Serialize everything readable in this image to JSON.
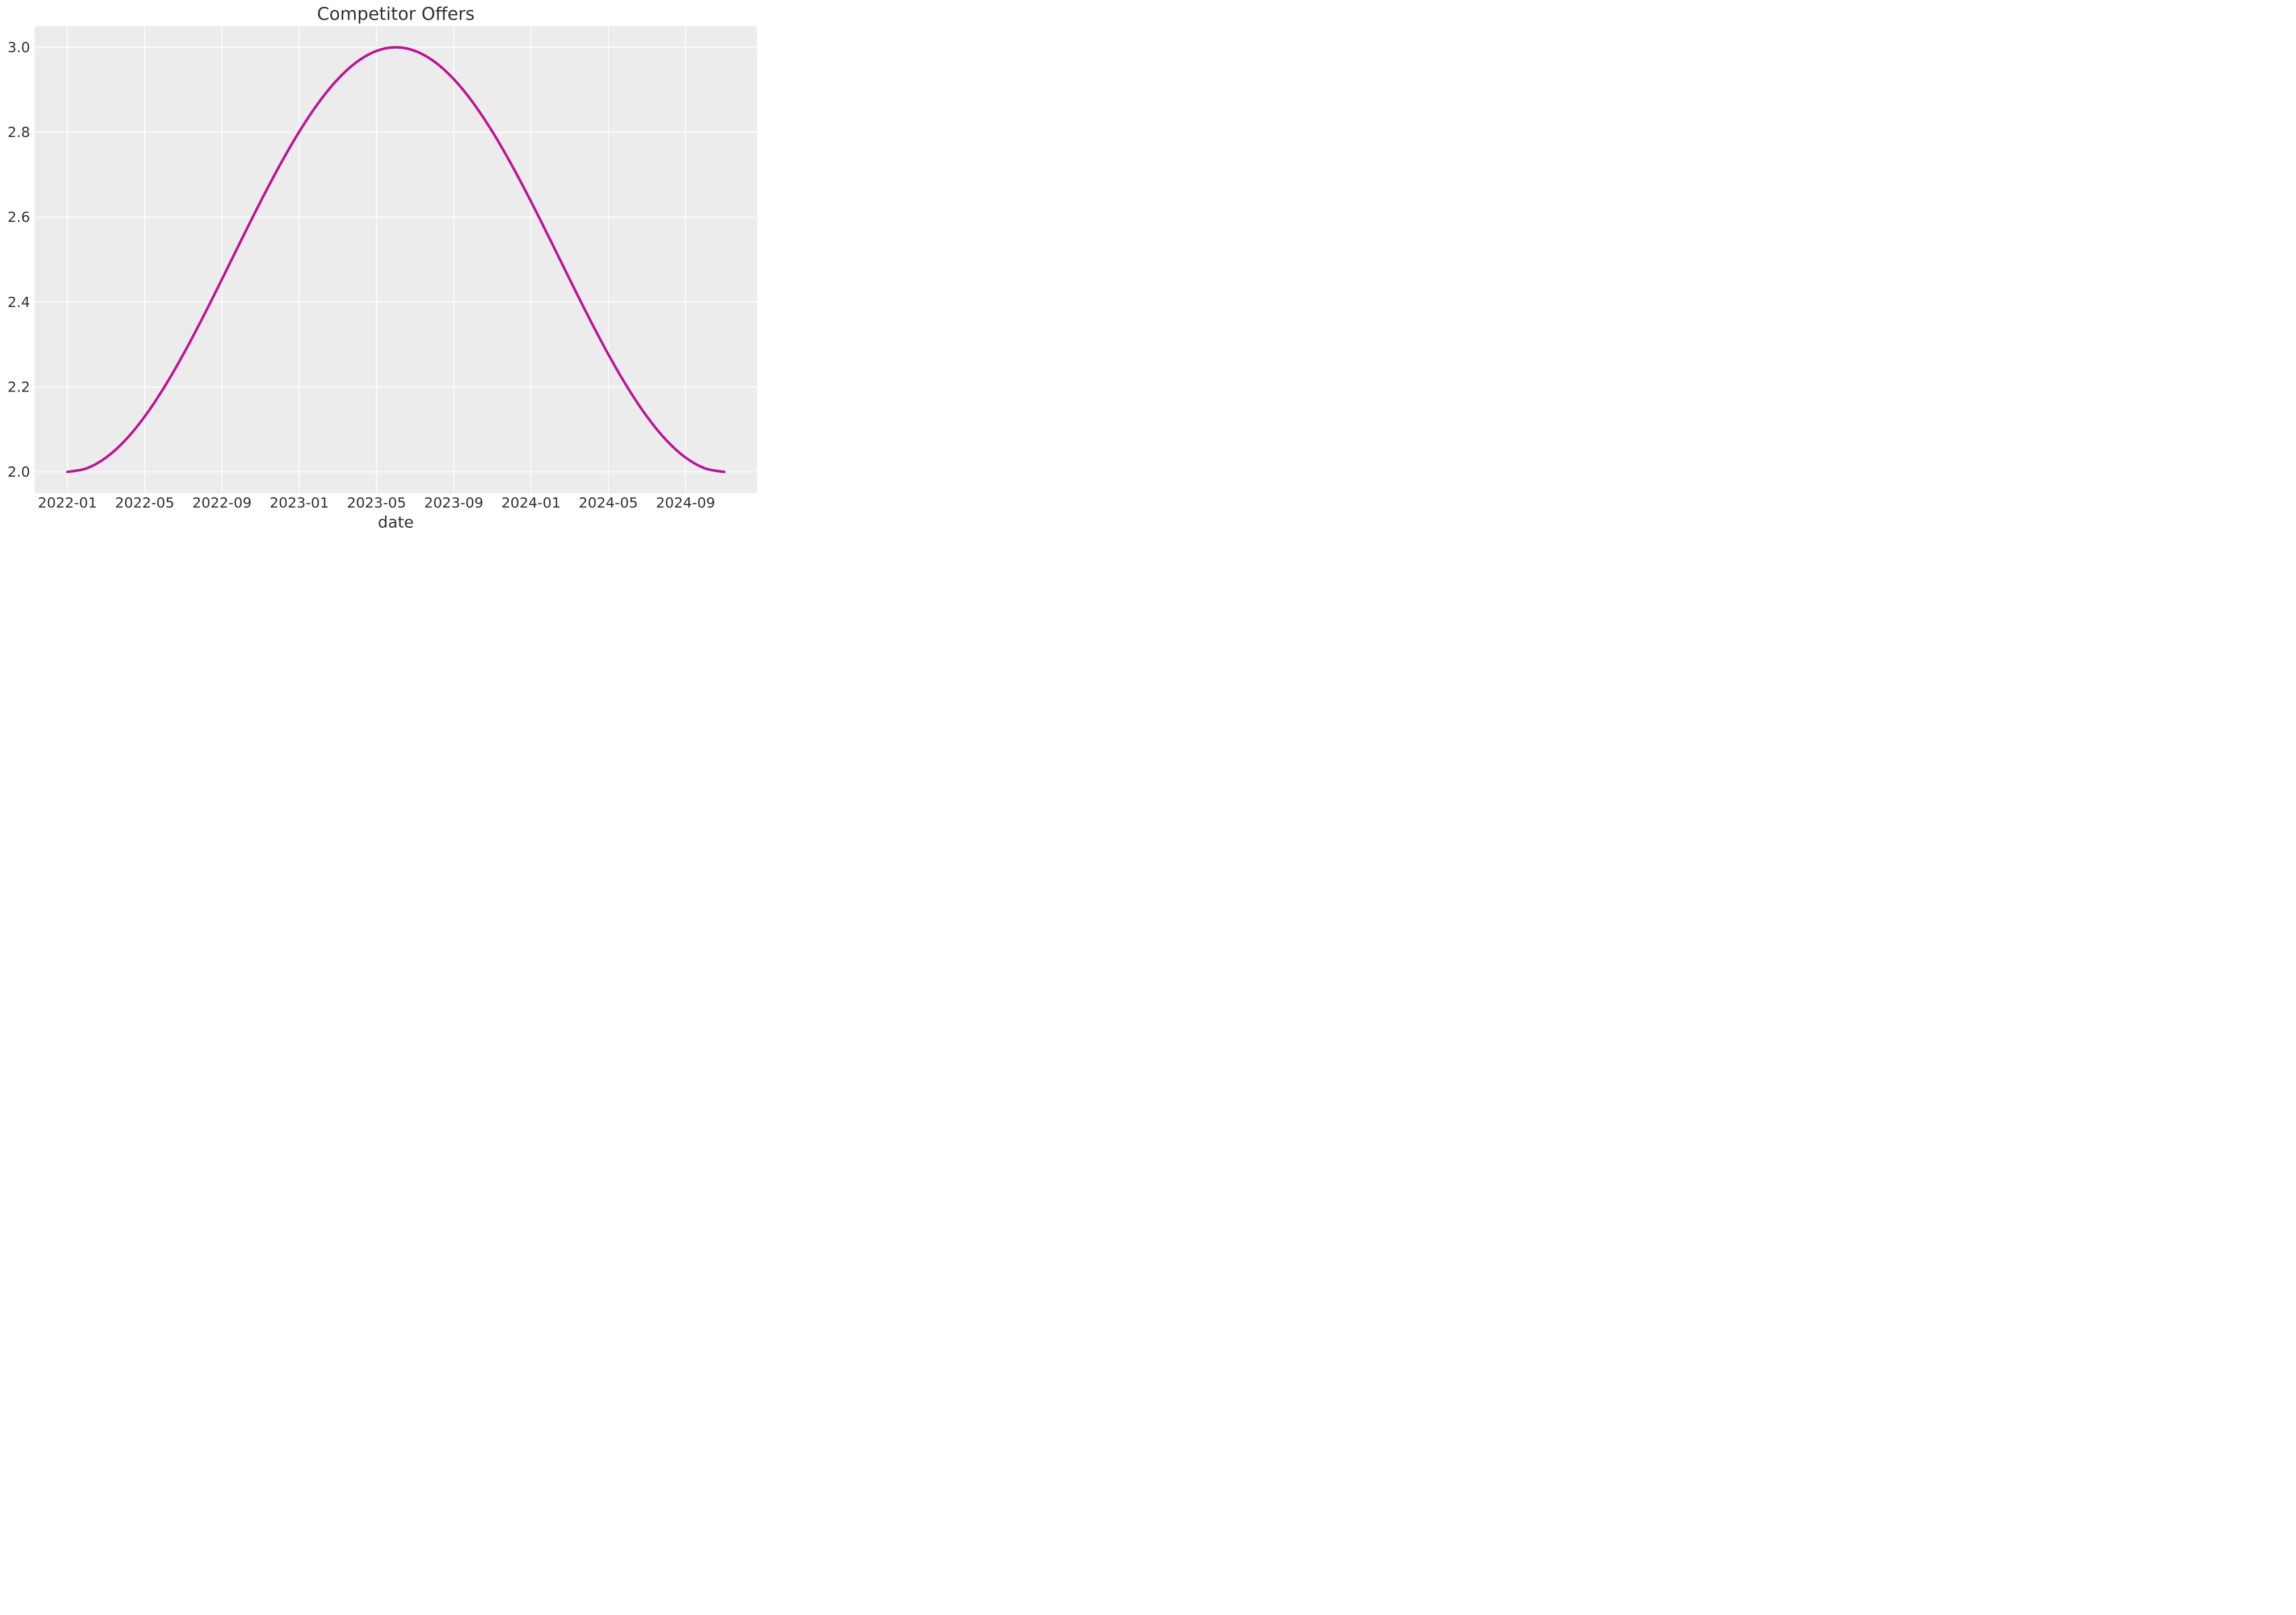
{
  "chart_data": {
    "type": "line",
    "title": "Competitor Offers",
    "xlabel": "date",
    "ylabel": "",
    "grid": true,
    "legend": false,
    "x": [
      "2022-01",
      "2022-02",
      "2022-03",
      "2022-04",
      "2022-05",
      "2022-06",
      "2022-07",
      "2022-08",
      "2022-09",
      "2022-10",
      "2022-11",
      "2022-12",
      "2023-01",
      "2023-02",
      "2023-03",
      "2023-04",
      "2023-05",
      "2023-06",
      "2023-07",
      "2023-08",
      "2023-09",
      "2023-10",
      "2023-11",
      "2023-12",
      "2024-01",
      "2024-02",
      "2024-03",
      "2024-04",
      "2024-05",
      "2024-06",
      "2024-07",
      "2024-08",
      "2024-09",
      "2024-10",
      "2024-11"
    ],
    "values": [
      2.0,
      2.0085,
      2.0338,
      2.0749,
      2.1305,
      2.1987,
      2.2771,
      2.3632,
      2.4539,
      2.5461,
      2.6368,
      2.7229,
      2.8013,
      2.8695,
      2.9251,
      2.9662,
      2.9915,
      3.0,
      2.9915,
      2.9662,
      2.9251,
      2.8695,
      2.8013,
      2.7229,
      2.6368,
      2.5461,
      2.4539,
      2.3632,
      2.2771,
      2.1987,
      2.1305,
      2.0749,
      2.0338,
      2.0085,
      2.0
    ],
    "y_ticks": [
      2.0,
      2.2,
      2.4,
      2.6,
      2.8,
      3.0
    ],
    "y_tick_labels": [
      "2.0",
      "2.2",
      "2.4",
      "2.6",
      "2.8",
      "3.0"
    ],
    "x_tick_labels": [
      "2022-01",
      "2022-05",
      "2022-09",
      "2023-01",
      "2023-05",
      "2023-09",
      "2024-01",
      "2024-05",
      "2024-09"
    ],
    "ylim": [
      1.95,
      3.05
    ],
    "x_margin_months": 1.7,
    "colors": {
      "line": "#be1397",
      "plot_bg": "#ececec",
      "grid": "#ffffff",
      "text": "#303030",
      "figure_bg": "#ffffff"
    }
  }
}
